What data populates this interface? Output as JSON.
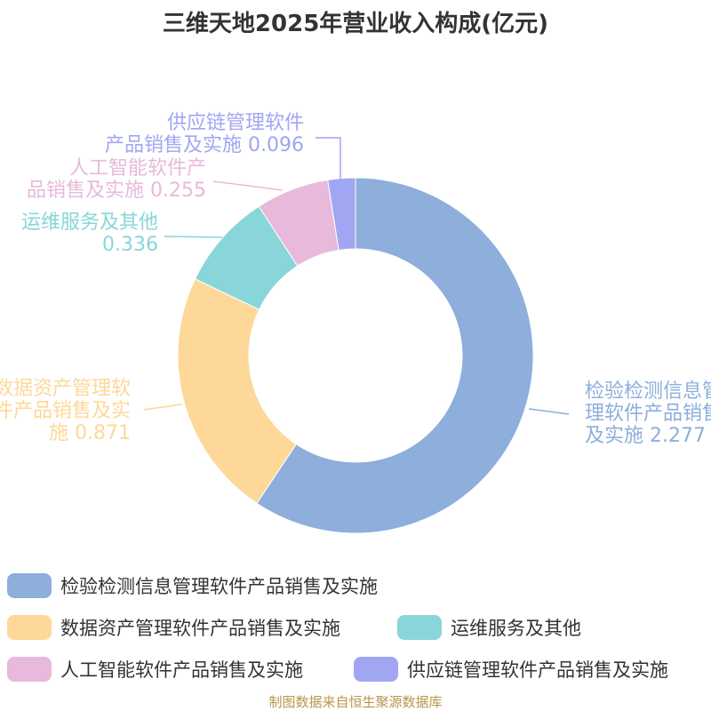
{
  "title": "三维天地2025年营业收入构成(亿元)",
  "source": "制图数据来自恒生聚源数据库",
  "chart_data": {
    "type": "pie",
    "variant": "donut",
    "title": "三维天地2025年营业收入构成(亿元)",
    "legend_position": "bottom",
    "slices": [
      {
        "name": "检验检测信息管理软件产品销售及实施",
        "value": 2.277,
        "color": "#8eaedb",
        "label_lines": [
          "检验检测信息管",
          "理软件产品销售",
          "及实施 2.277"
        ]
      },
      {
        "name": "数据资产管理软件产品销售及实施",
        "value": 0.871,
        "color": "#fdd898",
        "label_lines": [
          "数据资产管理软",
          "件产品销售及实",
          "施 0.871"
        ]
      },
      {
        "name": "运维服务及其他",
        "value": 0.336,
        "color": "#88d6d9",
        "label_lines": [
          "运维服务及其他",
          "0.336"
        ]
      },
      {
        "name": "人工智能软件产品销售及实施",
        "value": 0.255,
        "color": "#e8b9da",
        "label_lines": [
          "人工智能软件产",
          "品销售及实施 0.255"
        ]
      },
      {
        "name": "供应链管理软件产品销售及实施",
        "value": 0.096,
        "color": "#a1a6f2",
        "label_lines": [
          "供应链管理软件",
          "产品销售及实施 0.096"
        ]
      }
    ]
  }
}
